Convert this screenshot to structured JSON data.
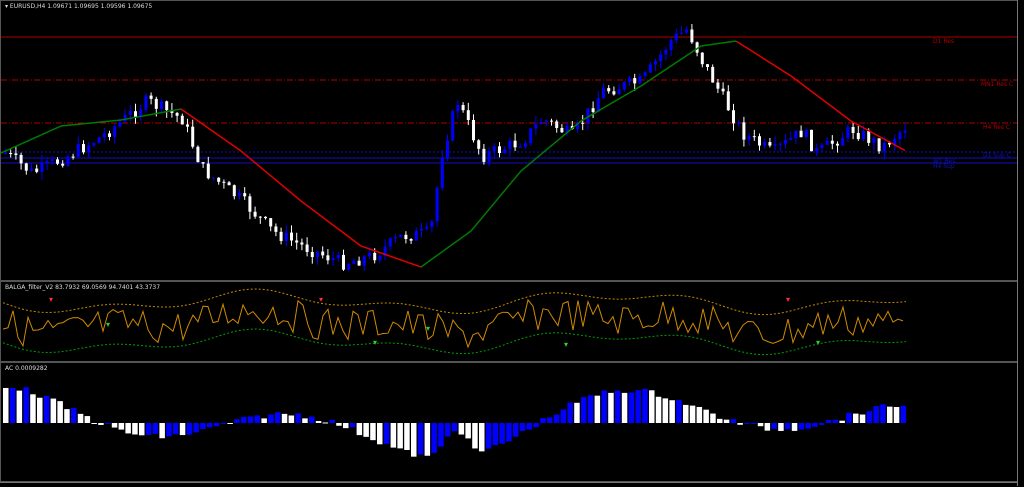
{
  "main": {
    "symbol_title": "EURUSD,H4  1.09671 1.09695 1.09596 1.09675",
    "collapse_icon": "triangle-down-icon",
    "levels": [
      {
        "label": "D1 Res",
        "color": "#b00000",
        "style": "solid"
      },
      {
        "label": "MN1 Res C",
        "color": "#b00000",
        "style": "dashdot"
      },
      {
        "label": "H4 Res C",
        "color": "#b00000",
        "style": "dashdot"
      },
      {
        "label": "D1 Sup C",
        "color": "#1010c0",
        "style": "dotted"
      },
      {
        "label": "W1 Res",
        "color": "#1010c0",
        "style": "solid"
      },
      {
        "label": "H4 Sup",
        "color": "#1010c0",
        "style": "solid"
      }
    ],
    "bull_color": "#0000ff",
    "bear_color": "#ffffff",
    "ma_up_color": "#007a00",
    "ma_down_color": "#e00000"
  },
  "indicator": {
    "title": "BALGA_filter_V2 83.7932 69.0569 94.7401 43.3737",
    "line_color": "#d08a00",
    "upper_band_color": "#c08a00",
    "lower_band_color": "#00a000"
  },
  "ac": {
    "title": "AC 0.0009282",
    "up_color": "#0000ff",
    "down_color": "#ffffff"
  }
}
